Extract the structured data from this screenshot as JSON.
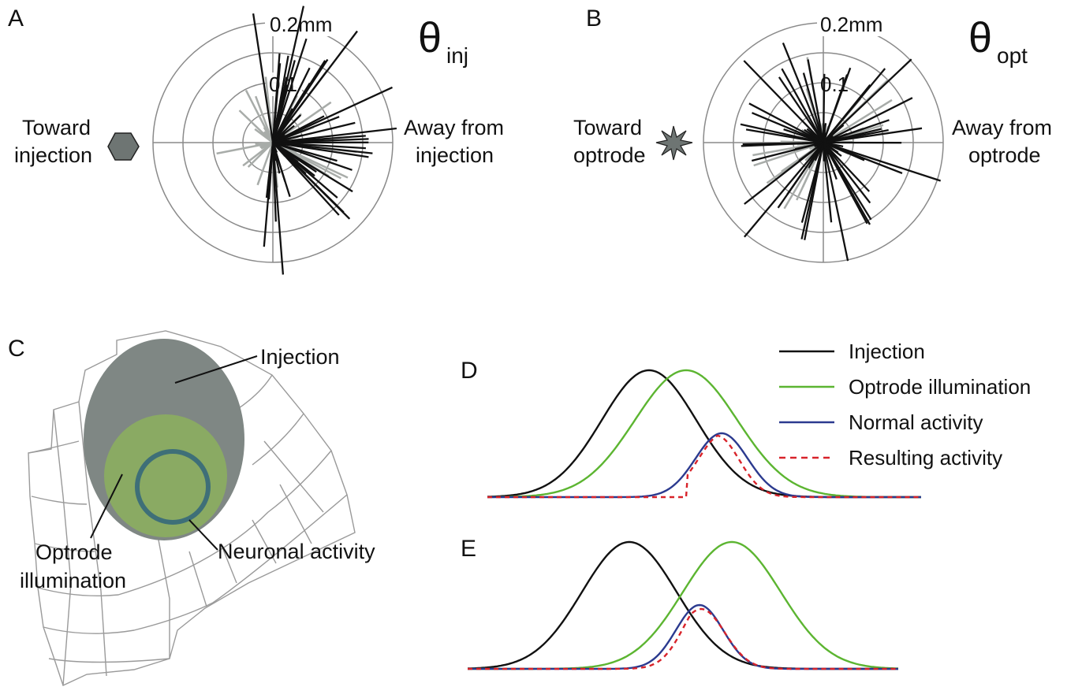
{
  "panelA": {
    "letter": "A",
    "theta_symbol": "θ",
    "theta_sub": "inj",
    "ring_labels": [
      "0.2mm",
      "0.1"
    ],
    "left_label": [
      "Toward",
      "injection"
    ],
    "right_label": [
      "Away from",
      "injection"
    ],
    "marker": "hexagon-icon"
  },
  "panelB": {
    "letter": "B",
    "theta_symbol": "θ",
    "theta_sub": "opt",
    "ring_labels": [
      "0.2mm",
      "0.1"
    ],
    "left_label": [
      "Toward",
      "optrode"
    ],
    "right_label": [
      "Away from",
      "optrode"
    ],
    "marker": "star-icon"
  },
  "panelC": {
    "letter": "C",
    "injection_label": "Injection",
    "optrode_label": [
      "Optrode",
      "illumination"
    ],
    "neuronal_label": "Neuronal activity"
  },
  "panelD": {
    "letter": "D"
  },
  "panelE": {
    "letter": "E"
  },
  "legend": [
    {
      "label": "Injection",
      "color": "#111111",
      "style": "solid"
    },
    {
      "label": "Optrode illumination",
      "color": "#5cb531",
      "style": "solid"
    },
    {
      "label": "Normal activity",
      "color": "#2b3a8f",
      "style": "solid"
    },
    {
      "label": "Resulting activity",
      "color": "#d8232a",
      "style": "dashed"
    }
  ],
  "colors": {
    "injection_fill": "#7f8784",
    "optrode_fill": "#8aaa63",
    "neuronal_ring": "#3e6f78",
    "grid": "#8a8a8a",
    "black_spokes": "#111111",
    "gray_spokes": "#a8aca9"
  }
}
